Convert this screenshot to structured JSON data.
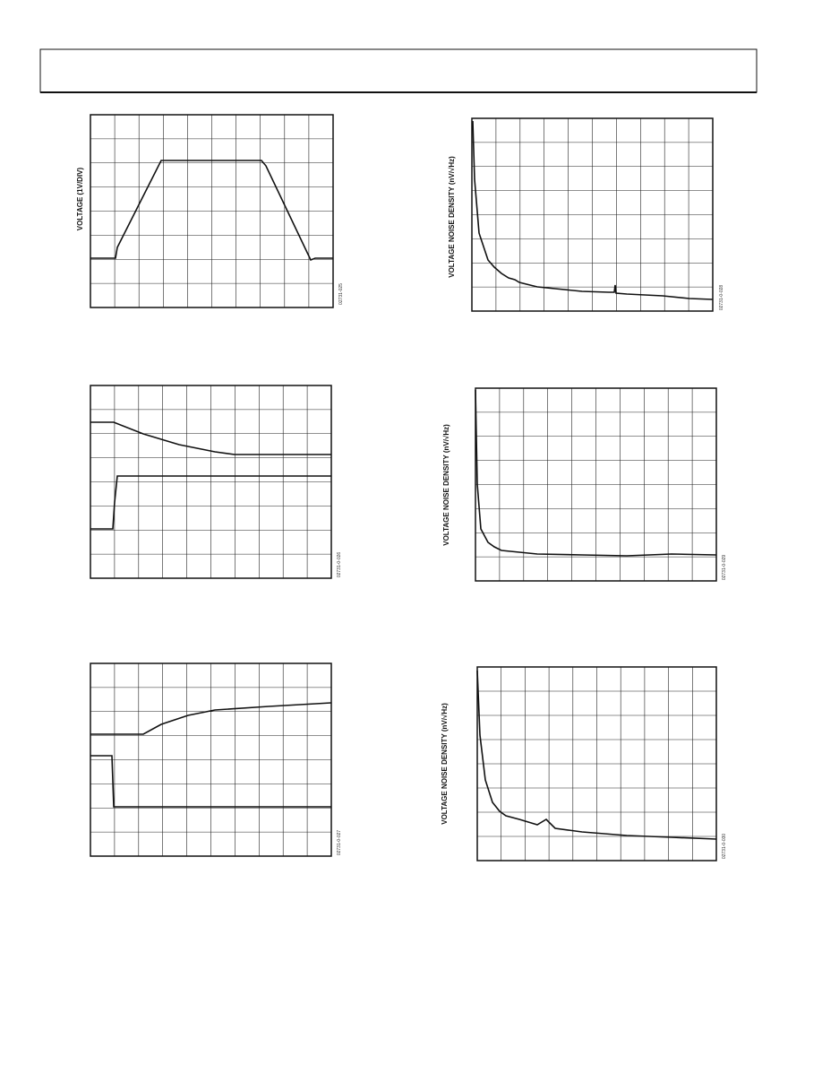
{
  "figures": [
    {
      "code": "02731-025",
      "y_axis_label": "VOLTAGE (1V/DIV)"
    },
    {
      "code": "02731-0-026"
    },
    {
      "code": "02731-0-027"
    },
    {
      "code": "02731-0-028",
      "y_axis_label": "VOLTAGE NOISE DENSITY (nV/√Hz)"
    },
    {
      "code": "02731-0-029",
      "y_axis_label": "VOLTAGE NOISE DENSITY (nV/√Hz)"
    },
    {
      "code": "02731-0-030",
      "y_axis_label": "VOLTAGE NOISE DENSITY (nV/√Hz)"
    }
  ]
}
